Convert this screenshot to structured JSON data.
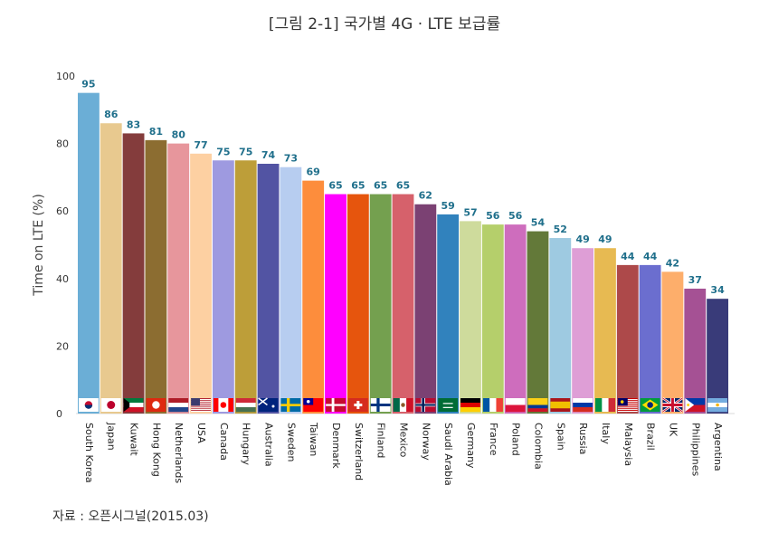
{
  "title": "[그림 2-1] 국가별 4G · LTE 보급률",
  "source": "자료 : 오픈시그널(2015.03)",
  "chart_data": {
    "type": "bar",
    "ylabel": "Time on LTE (%)",
    "xlabel": "",
    "ylim": [
      0,
      100
    ],
    "yticks": [
      0,
      20,
      40,
      60,
      80,
      100
    ],
    "grid": false,
    "categories": [
      "South Korea",
      "Japan",
      "Kuwait",
      "Hong Kong",
      "Netherlands",
      "USA",
      "Canada",
      "Hungary",
      "Australia",
      "Sweden",
      "Taiwan",
      "Denmark",
      "Switzerland",
      "Finland",
      "Mexico",
      "Norway",
      "Saudi Arabia",
      "Germany",
      "France",
      "Poland",
      "Colombia",
      "Spain",
      "Russia",
      "Italy",
      "Malaysia",
      "Brazil",
      "UK",
      "Philippines",
      "Argentina"
    ],
    "values": [
      95,
      86,
      83,
      81,
      80,
      77,
      75,
      75,
      74,
      73,
      69,
      65,
      65,
      65,
      65,
      62,
      59,
      57,
      56,
      56,
      54,
      52,
      49,
      49,
      44,
      44,
      42,
      37,
      34
    ],
    "colors": [
      "#6baed6",
      "#e8c98f",
      "#843c3c",
      "#8c6d31",
      "#e7969c",
      "#fdd0a2",
      "#9e9ae0",
      "#bd9e39",
      "#5254a3",
      "#b7cdf0",
      "#fd8d3c",
      "#ff00ff",
      "#e6550d",
      "#74a04f",
      "#d6616b",
      "#7b4173",
      "#3182bd",
      "#cedb9c",
      "#b5cf6b",
      "#ce6dbd",
      "#637939",
      "#9ecae1",
      "#de9ed6",
      "#e7ba52",
      "#ad494a",
      "#6b6ecf",
      "#fdae6b",
      "#a55194",
      "#393b79"
    ],
    "label_color": "#1f6f8b",
    "flags": [
      "flag-south-korea",
      "flag-japan",
      "flag-kuwait",
      "flag-hong-kong",
      "flag-netherlands",
      "flag-usa",
      "flag-canada",
      "flag-hungary",
      "flag-australia",
      "flag-sweden",
      "flag-taiwan",
      "flag-denmark",
      "flag-switzerland",
      "flag-finland",
      "flag-mexico",
      "flag-norway",
      "flag-saudi-arabia",
      "flag-germany",
      "flag-france",
      "flag-poland",
      "flag-colombia",
      "flag-spain",
      "flag-russia",
      "flag-italy",
      "flag-malaysia",
      "flag-brazil",
      "flag-uk",
      "flag-philippines",
      "flag-argentina"
    ]
  }
}
